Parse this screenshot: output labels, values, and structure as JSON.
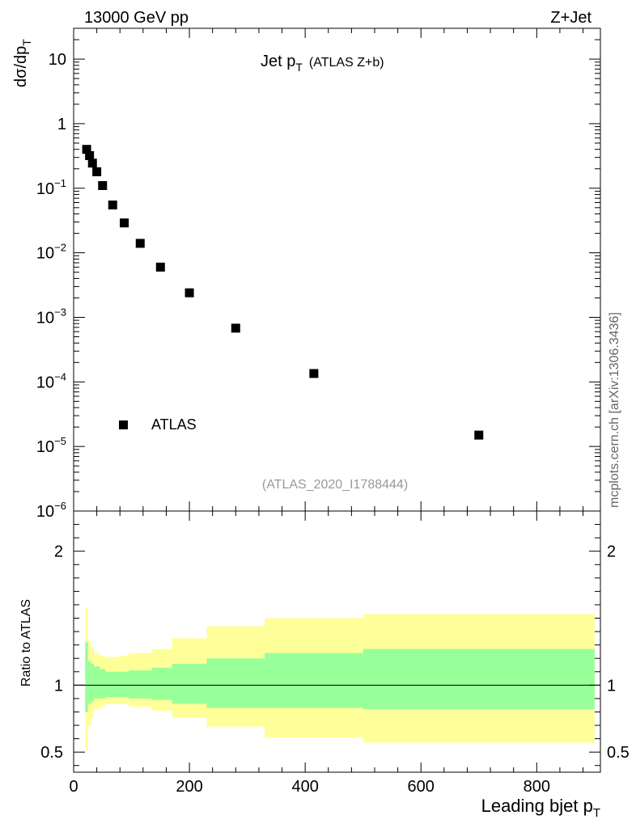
{
  "header": {
    "left": "13000 GeV pp",
    "right": "Z+Jet"
  },
  "side_label": "mcplots.cern.ch [arXiv:1306.3436]",
  "chart_data": [
    {
      "type": "scatter",
      "title_main": "Jet p",
      "title_sub": "T",
      "title_extra": "(ATLAS Z+b)",
      "ylabel_main": "dσ/dp",
      "ylabel_sub": "T",
      "yscale": "log",
      "ylim": [
        1e-06,
        30
      ],
      "xlim": [
        0,
        910
      ],
      "y_ticks": [
        {
          "value": 10,
          "label": "10"
        },
        {
          "value": 1,
          "label": "1"
        },
        {
          "value": 0.1,
          "base": "10",
          "exp": "−1"
        },
        {
          "value": 0.01,
          "base": "10",
          "exp": "−2"
        },
        {
          "value": 0.001,
          "base": "10",
          "exp": "−3"
        },
        {
          "value": 0.0001,
          "base": "10",
          "exp": "−4"
        },
        {
          "value": 1e-05,
          "base": "10",
          "exp": "−5"
        },
        {
          "value": 1e-06,
          "base": "10",
          "exp": "−6"
        }
      ],
      "legend": {
        "position": "bottom-left",
        "label": "ATLAS"
      },
      "annotation": "(ATLAS_2020_I1788444)",
      "series": [
        {
          "name": "ATLAS",
          "x": [
            22.5,
            27.5,
            32.5,
            40,
            50,
            67.5,
            87.5,
            115,
            150,
            200,
            280,
            415,
            700
          ],
          "y": [
            0.4,
            0.32,
            0.245,
            0.18,
            0.11,
            0.055,
            0.029,
            0.014,
            0.006,
            0.0024,
            0.00068,
            0.000135,
            1.5e-05
          ]
        }
      ]
    },
    {
      "type": "area",
      "ylabel": "Ratio to ATLAS",
      "xlabel_main": "Leading bjet p",
      "xlabel_sub": "T",
      "xlim": [
        0,
        910
      ],
      "ylim": [
        0.35,
        2.3
      ],
      "x_ticks": [
        {
          "value": 0,
          "label": "0"
        },
        {
          "value": 200,
          "label": "200"
        },
        {
          "value": 400,
          "label": "400"
        },
        {
          "value": 600,
          "label": "600"
        },
        {
          "value": 800,
          "label": "800"
        }
      ],
      "y_ticks": [
        {
          "value": 0.5,
          "label": "0.5"
        },
        {
          "value": 1,
          "label": "1"
        },
        {
          "value": 2,
          "label": "2"
        }
      ],
      "reference_line": 1,
      "bins": [
        20,
        25,
        30,
        35,
        45,
        55,
        80,
        95,
        135,
        170,
        230,
        330,
        500,
        900
      ],
      "band_inner_upper": [
        1.32,
        1.18,
        1.16,
        1.14,
        1.12,
        1.1,
        1.1,
        1.11,
        1.13,
        1.16,
        1.2,
        1.24,
        1.27
      ],
      "band_inner_lower": [
        0.8,
        0.86,
        0.88,
        0.9,
        0.9,
        0.91,
        0.91,
        0.9,
        0.89,
        0.86,
        0.83,
        0.83,
        0.82
      ],
      "band_outer_upper": [
        1.58,
        1.33,
        1.28,
        1.24,
        1.22,
        1.21,
        1.22,
        1.24,
        1.27,
        1.35,
        1.44,
        1.5,
        1.53
      ],
      "band_outer_lower": [
        0.52,
        0.7,
        0.76,
        0.82,
        0.84,
        0.86,
        0.86,
        0.84,
        0.81,
        0.76,
        0.69,
        0.61,
        0.57
      ],
      "colors": {
        "inner": "#99ff99",
        "outer": "#ffff99",
        "line": "#000000"
      }
    }
  ]
}
